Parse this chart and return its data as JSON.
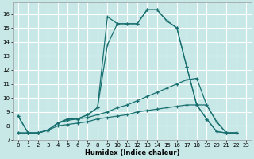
{
  "xlabel": "Humidex (Indice chaleur)",
  "background_color": "#c8e8e8",
  "grid_color": "#ffffff",
  "line_color": "#1a7070",
  "xlim": [
    -0.5,
    23.5
  ],
  "ylim": [
    7.0,
    16.8
  ],
  "yticks": [
    7,
    8,
    9,
    10,
    11,
    12,
    13,
    14,
    15,
    16
  ],
  "xticks": [
    0,
    1,
    2,
    3,
    4,
    5,
    6,
    7,
    8,
    9,
    10,
    11,
    12,
    13,
    14,
    15,
    16,
    17,
    18,
    19,
    20,
    21,
    22,
    23
  ],
  "series": [
    {
      "x": [
        0,
        1,
        2,
        3,
        4,
        5,
        6,
        7,
        8,
        9,
        10,
        11,
        12,
        13,
        14,
        15,
        16,
        17,
        18,
        19,
        20,
        21,
        22
      ],
      "y": [
        8.7,
        7.5,
        7.5,
        7.7,
        8.2,
        8.5,
        8.5,
        8.8,
        9.3,
        15.8,
        15.3,
        15.3,
        15.3,
        16.3,
        16.3,
        15.5,
        15.0,
        12.2,
        9.5,
        8.5,
        7.6,
        7.5,
        7.5
      ]
    },
    {
      "x": [
        0,
        1,
        2,
        3,
        4,
        5,
        6,
        7,
        8,
        9,
        10,
        11,
        12,
        13,
        14,
        15,
        16,
        17,
        18,
        19,
        20,
        21,
        22
      ],
      "y": [
        8.7,
        7.5,
        7.5,
        7.7,
        8.2,
        8.5,
        8.5,
        8.8,
        9.3,
        13.8,
        15.3,
        15.3,
        15.3,
        16.3,
        16.3,
        15.5,
        15.0,
        12.2,
        9.5,
        8.5,
        7.6,
        7.5,
        7.5
      ]
    },
    {
      "x": [
        0,
        1,
        2,
        3,
        4,
        5,
        6,
        7,
        8,
        9,
        10,
        11,
        12,
        13,
        14,
        15,
        16,
        17,
        18,
        19,
        20,
        21,
        22
      ],
      "y": [
        7.5,
        7.5,
        7.5,
        7.7,
        8.2,
        8.4,
        8.5,
        8.6,
        8.8,
        9.0,
        9.3,
        9.5,
        9.8,
        10.1,
        10.4,
        10.7,
        11.0,
        11.3,
        11.4,
        9.5,
        8.3,
        7.5,
        7.5
      ]
    },
    {
      "x": [
        0,
        1,
        2,
        3,
        4,
        5,
        6,
        7,
        8,
        9,
        10,
        11,
        12,
        13,
        14,
        15,
        16,
        17,
        18,
        19,
        20,
        21,
        22
      ],
      "y": [
        7.5,
        7.5,
        7.5,
        7.7,
        8.0,
        8.1,
        8.2,
        8.3,
        8.5,
        8.6,
        8.7,
        8.8,
        9.0,
        9.1,
        9.2,
        9.3,
        9.4,
        9.5,
        9.5,
        9.5,
        8.3,
        7.5,
        7.5
      ]
    }
  ]
}
